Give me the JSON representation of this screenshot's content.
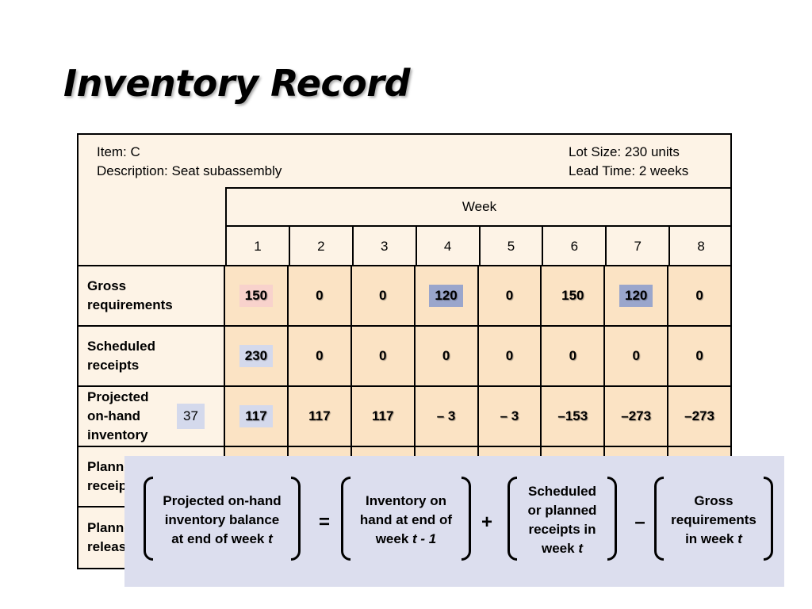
{
  "title": "Inventory Record",
  "record": {
    "item": "Item: C",
    "description": "Description: Seat subassembly",
    "lot_size": "Lot Size: 230 units",
    "lead_time": "Lead Time: 2 weeks",
    "week_label": "Week",
    "weeks": [
      "1",
      "2",
      "3",
      "4",
      "5",
      "6",
      "7",
      "8"
    ],
    "rows": [
      {
        "label_l1": "Gross",
        "label_l2": "requirements",
        "values": [
          "150",
          "0",
          "0",
          "120",
          "0",
          "150",
          "120",
          "0"
        ]
      },
      {
        "label_l1": "Scheduled",
        "label_l2": "receipts",
        "values": [
          "230",
          "0",
          "0",
          "0",
          "0",
          "0",
          "0",
          "0"
        ]
      },
      {
        "label_l1": "Projected",
        "label_l2": "on-hand",
        "label_l3": "inventory",
        "initial": "37",
        "values": [
          "117",
          "117",
          "117",
          "– 3",
          "– 3",
          "–153",
          "–273",
          "–273"
        ]
      },
      {
        "label_l1": "Planned",
        "label_l2": "receipts"
      },
      {
        "label_l1": "Planned",
        "label_l2": "release"
      }
    ]
  },
  "formula": {
    "t1_l1": "Projected on-hand",
    "t1_l2": "inventory balance",
    "t1_l3": "at end of week",
    "t1_var": "t",
    "eq": "=",
    "t2_l1": "Inventory on",
    "t2_l2": "hand at end of",
    "t2_l3": "week",
    "t2_var": "t - 1",
    "plus": "+",
    "t3_l1": "Scheduled",
    "t3_l2": "or planned",
    "t3_l3": "receipts in",
    "t3_l4": "week",
    "t3_var": "t",
    "minus": "–",
    "t4_l1": "Gross",
    "t4_l2": "requirements",
    "t4_l3": "in week",
    "t4_var": "t"
  },
  "colors": {
    "cell_bg": "#fbe3c4",
    "record_bg": "#fdf3e6",
    "highlight_pink": "#f8d2cc",
    "highlight_blue": "#9aa6cc",
    "highlight_lavender": "#d4d9ec",
    "overlay_bg": "#dcdeee"
  }
}
